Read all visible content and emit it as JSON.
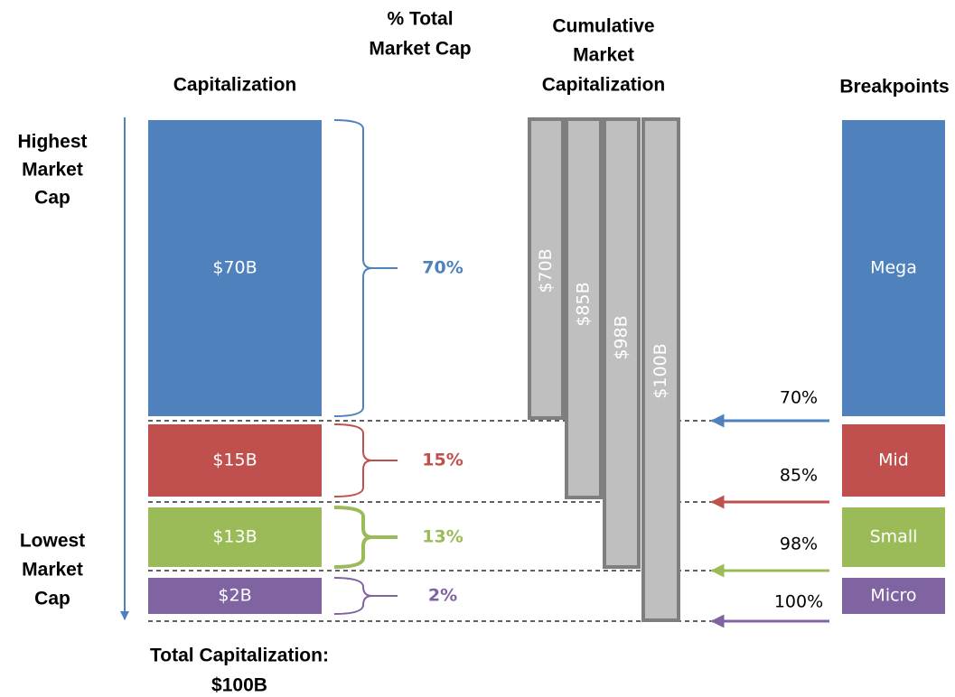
{
  "headers": {
    "capitalization": "Capitalization",
    "percent": [
      "% Total",
      "Market Cap"
    ],
    "cumulative": [
      "Cumulative",
      "Market",
      "Capitalization"
    ],
    "breakpoints": "Breakpoints"
  },
  "side_labels": {
    "highest": [
      "Highest",
      "Market",
      "Cap"
    ],
    "lowest": [
      "Lowest",
      "Market",
      "Cap"
    ]
  },
  "segments": [
    {
      "label": "$70B",
      "percent": "70%",
      "cumulative": "$70B",
      "breakpoint": "Mega",
      "breakpoint_percent": "70%"
    },
    {
      "label": "$15B",
      "percent": "15%",
      "cumulative": "$85B",
      "breakpoint": "Mid",
      "breakpoint_percent": "85%"
    },
    {
      "label": "$13B",
      "percent": "13%",
      "cumulative": "$98B",
      "breakpoint": "Small",
      "breakpoint_percent": "98%"
    },
    {
      "label": "$2B",
      "percent": "2%",
      "cumulative": "$100B",
      "breakpoint": "Micro",
      "breakpoint_percent": "100%"
    }
  ],
  "footer": [
    "Total Capitalization:",
    "$100B"
  ]
}
